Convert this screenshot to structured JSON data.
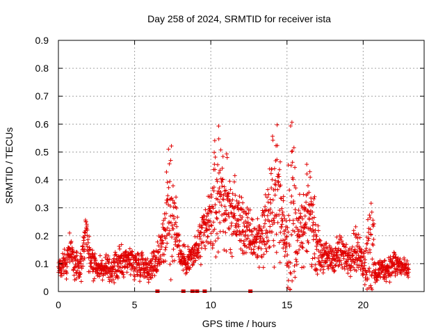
{
  "chart_data": {
    "type": "scatter",
    "title": "Day 258 of 2024, SRMTID for receiver ista",
    "xlabel": "GPS time / hours",
    "ylabel": "SRMTID / TECUs",
    "xlim": [
      0,
      24
    ],
    "ylim": [
      0,
      0.9
    ],
    "x_ticks": [
      0,
      5,
      10,
      15,
      20
    ],
    "x_tick_labels": [
      "0",
      "5",
      "10",
      "15",
      "20"
    ],
    "y_ticks": [
      0,
      0.1,
      0.2,
      0.3,
      0.4,
      0.5,
      0.6,
      0.7,
      0.8,
      0.9
    ],
    "y_tick_labels": [
      "0",
      "0.1",
      "0.2",
      "0.3",
      "0.4",
      "0.5",
      "0.6",
      "0.7",
      "0.8",
      "0.9"
    ],
    "grid": true,
    "marker": "plus",
    "series_color": "#e00000",
    "data_gap_markers_x": [
      6.5,
      8.2,
      8.8,
      9.1,
      9.6,
      12.6
    ],
    "envelope": {
      "x": [
        0,
        0.5,
        0.7,
        1.0,
        1.5,
        1.8,
        2.0,
        2.5,
        3.0,
        3.5,
        4.0,
        4.5,
        5.0,
        5.5,
        6.0,
        6.5,
        7.0,
        7.3,
        7.5,
        7.8,
        8.0,
        8.5,
        9.0,
        9.5,
        10.0,
        10.4,
        10.7,
        11.0,
        11.5,
        12.0,
        12.5,
        13.0,
        13.5,
        14.0,
        14.3,
        14.6,
        15.0,
        15.3,
        15.6,
        16.0,
        16.5,
        17.0,
        17.5,
        18.0,
        18.5,
        19.0,
        19.5,
        20.0,
        20.3,
        20.5,
        20.8,
        21.0,
        21.5,
        22.0,
        22.5,
        23.0
      ],
      "center": [
        0.08,
        0.1,
        0.16,
        0.1,
        0.09,
        0.22,
        0.13,
        0.09,
        0.08,
        0.08,
        0.1,
        0.12,
        0.1,
        0.1,
        0.08,
        0.12,
        0.22,
        0.3,
        0.28,
        0.22,
        0.12,
        0.11,
        0.14,
        0.2,
        0.26,
        0.34,
        0.38,
        0.3,
        0.28,
        0.24,
        0.2,
        0.18,
        0.22,
        0.3,
        0.4,
        0.28,
        0.18,
        0.3,
        0.22,
        0.2,
        0.3,
        0.15,
        0.12,
        0.12,
        0.14,
        0.12,
        0.16,
        0.1,
        0.14,
        0.22,
        0.05,
        0.08,
        0.08,
        0.1,
        0.09,
        0.07
      ],
      "spread": [
        0.03,
        0.04,
        0.05,
        0.04,
        0.04,
        0.07,
        0.05,
        0.03,
        0.03,
        0.03,
        0.04,
        0.04,
        0.04,
        0.04,
        0.03,
        0.05,
        0.1,
        0.2,
        0.12,
        0.07,
        0.04,
        0.04,
        0.05,
        0.07,
        0.09,
        0.2,
        0.16,
        0.12,
        0.1,
        0.08,
        0.07,
        0.06,
        0.09,
        0.14,
        0.22,
        0.12,
        0.08,
        0.45,
        0.1,
        0.08,
        0.13,
        0.06,
        0.04,
        0.04,
        0.05,
        0.04,
        0.06,
        0.04,
        0.12,
        0.2,
        0.04,
        0.03,
        0.03,
        0.04,
        0.03,
        0.02
      ]
    }
  }
}
